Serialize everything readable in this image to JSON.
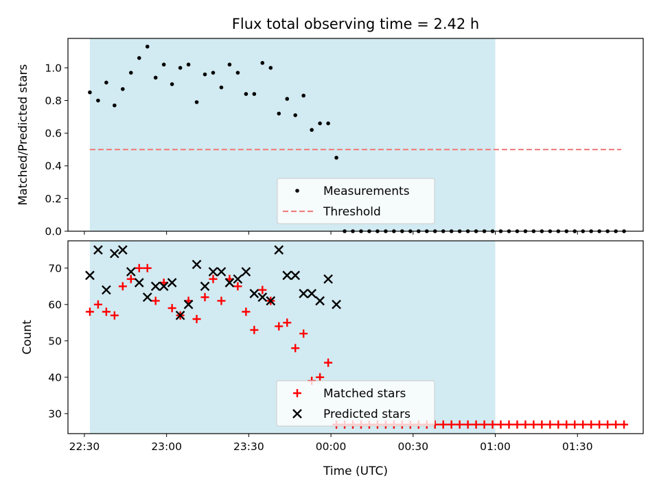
{
  "chart_data": [
    {
      "type": "scatter",
      "title": "Flux total observing time = 2.42 h",
      "ylabel": "Matched/Predicted stars",
      "ylim": [
        0,
        1.18
      ],
      "yticks": [
        0.0,
        0.2,
        0.4,
        0.6,
        0.8,
        1.0
      ],
      "ytick_labels": [
        "0.0",
        "0.2",
        "0.4",
        "0.6",
        "0.8",
        "1.0"
      ],
      "shade_color": "#add8e6",
      "legend": {
        "placement": "lower center",
        "entries": [
          "Measurements",
          "Threshold"
        ]
      },
      "series": [
        {
          "name": "Measurements",
          "marker": "dot",
          "color": "#000000",
          "x": [
            "22:32",
            "22:35",
            "22:38",
            "22:41",
            "22:44",
            "22:47",
            "22:50",
            "22:53",
            "22:56",
            "22:59",
            "23:02",
            "23:05",
            "23:08",
            "23:11",
            "23:14",
            "23:17",
            "23:20",
            "23:23",
            "23:26",
            "23:29",
            "23:32",
            "23:35",
            "23:38",
            "23:41",
            "23:44",
            "23:47",
            "23:50",
            "23:53",
            "23:56",
            "23:59",
            "00:02",
            "00:05",
            "00:08",
            "00:11",
            "00:14",
            "00:17",
            "00:20",
            "00:23",
            "00:26",
            "00:29",
            "00:32",
            "00:35",
            "00:38",
            "00:41",
            "00:44",
            "00:47",
            "00:50",
            "00:53",
            "00:56",
            "00:59",
            "01:02",
            "01:05",
            "01:08",
            "01:11",
            "01:14",
            "01:17",
            "01:20",
            "01:23",
            "01:26",
            "01:29",
            "01:32",
            "01:35",
            "01:38",
            "01:41",
            "01:44",
            "01:47"
          ],
          "y": [
            0.85,
            0.8,
            0.91,
            0.77,
            0.87,
            0.97,
            1.06,
            1.13,
            0.94,
            1.02,
            0.9,
            1.0,
            1.02,
            0.79,
            0.96,
            0.97,
            0.88,
            1.02,
            0.97,
            0.84,
            0.84,
            1.03,
            1.0,
            0.72,
            0.81,
            0.71,
            0.83,
            0.62,
            0.66,
            0.66,
            0.45,
            0.0,
            0.0,
            0.0,
            0.0,
            0.0,
            0.0,
            0.0,
            0.0,
            0.0,
            0.0,
            0.0,
            0.0,
            0.0,
            0.0,
            0.0,
            0.0,
            0.0,
            0.0,
            0.0,
            0.0,
            0.0,
            0.0,
            0.0,
            0.0,
            0.0,
            0.0,
            0.0,
            0.0,
            0.0,
            0.0,
            0.0,
            0.0,
            0.0,
            0.0,
            0.0
          ]
        },
        {
          "name": "Threshold",
          "marker": "dashed-line",
          "color": "#f08080",
          "x": [
            "22:32",
            "01:46"
          ],
          "y": [
            0.5,
            0.5
          ]
        }
      ]
    },
    {
      "type": "scatter",
      "xlabel": "Time (UTC)",
      "ylabel": "Count",
      "ylim": [
        24.5,
        77.5
      ],
      "yticks": [
        30,
        40,
        50,
        60,
        70
      ],
      "ytick_labels": [
        "30",
        "40",
        "50",
        "60",
        "70"
      ],
      "xlim": [
        "22:24",
        "01:54"
      ],
      "xticks": [
        "22:30",
        "23:00",
        "23:30",
        "00:00",
        "00:30",
        "01:00",
        "01:30"
      ],
      "xtick_labels": [
        "22:30",
        "23:00",
        "23:30",
        "00:00",
        "00:30",
        "01:00",
        "01:30"
      ],
      "shaded_span": [
        "22:32",
        "01:00"
      ],
      "shade_color": "#add8e6",
      "legend": {
        "placement": "lower center",
        "entries": [
          "Matched stars",
          "Predicted stars"
        ]
      },
      "series": [
        {
          "name": "Matched stars",
          "marker": "plus",
          "color": "#ff0000",
          "x": [
            "22:32",
            "22:35",
            "22:38",
            "22:41",
            "22:44",
            "22:47",
            "22:50",
            "22:53",
            "22:56",
            "22:59",
            "23:02",
            "23:05",
            "23:08",
            "23:11",
            "23:14",
            "23:17",
            "23:20",
            "23:23",
            "23:26",
            "23:29",
            "23:32",
            "23:35",
            "23:38",
            "23:41",
            "23:44",
            "23:47",
            "23:50",
            "23:53",
            "23:56",
            "23:59",
            "00:02",
            "00:05",
            "00:08",
            "00:11",
            "00:14",
            "00:17",
            "00:20",
            "00:23",
            "00:26",
            "00:29",
            "00:32",
            "00:35",
            "00:38",
            "00:41",
            "00:44",
            "00:47",
            "00:50",
            "00:53",
            "00:56",
            "00:59",
            "01:02",
            "01:05",
            "01:08",
            "01:11",
            "01:14",
            "01:17",
            "01:20",
            "01:23",
            "01:26",
            "01:29",
            "01:32",
            "01:35",
            "01:38",
            "01:41",
            "01:44",
            "01:47"
          ],
          "y": [
            58,
            60,
            58,
            57,
            65,
            67,
            70,
            70,
            61,
            66,
            59,
            57,
            61,
            56,
            62,
            67,
            61,
            67,
            65,
            58,
            53,
            64,
            61,
            54,
            55,
            48,
            52,
            39,
            40,
            44,
            27,
            27,
            27,
            27,
            27,
            27,
            27,
            27,
            27,
            27,
            27,
            27,
            27,
            27,
            27,
            27,
            27,
            27,
            27,
            27,
            27,
            27,
            27,
            27,
            27,
            27,
            27,
            27,
            27,
            27,
            27,
            27,
            27,
            27,
            27,
            27
          ]
        },
        {
          "name": "Predicted stars",
          "marker": "x",
          "color": "#000000",
          "x": [
            "22:32",
            "22:35",
            "22:38",
            "22:41",
            "22:44",
            "22:47",
            "22:50",
            "22:53",
            "22:56",
            "22:59",
            "23:02",
            "23:05",
            "23:08",
            "23:11",
            "23:14",
            "23:17",
            "23:20",
            "23:23",
            "23:26",
            "23:29",
            "23:32",
            "23:35",
            "23:38",
            "23:41",
            "23:44",
            "23:47",
            "23:50",
            "23:53",
            "23:56",
            "23:59",
            "00:02"
          ],
          "y": [
            68,
            75,
            64,
            74,
            75,
            69,
            66,
            62,
            65,
            65,
            66,
            57,
            60,
            71,
            65,
            69,
            69,
            66,
            67,
            69,
            63,
            62,
            61,
            75,
            68,
            68,
            63,
            63,
            61,
            67,
            60
          ]
        }
      ]
    }
  ]
}
